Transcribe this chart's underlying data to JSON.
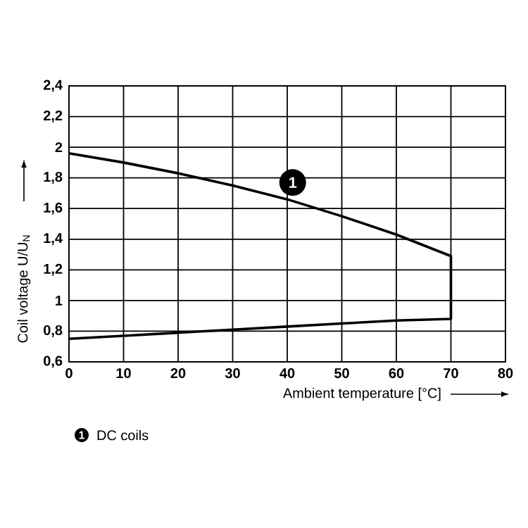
{
  "chart_data": {
    "type": "line",
    "xlabel": "Ambient temperature [°C]",
    "ylabel": "Coil voltage U/U$_{N}$",
    "series": [
      {
        "color": "#000000",
        "x": [
          0,
          10,
          20,
          30,
          40,
          50,
          60,
          70,
          70,
          60,
          50,
          40,
          30,
          20,
          10,
          0
        ],
        "values": [
          1.96,
          1.9,
          1.83,
          1.75,
          1.66,
          1.55,
          1.43,
          1.29,
          0.88,
          0.87,
          0.85,
          0.83,
          0.81,
          0.79,
          0.77,
          0.75
        ]
      }
    ],
    "xlim": [
      0,
      80
    ],
    "ylim": [
      0.6,
      2.4
    ],
    "xticks": [
      0,
      10,
      20,
      30,
      40,
      50,
      60,
      70,
      80
    ],
    "yticks": [
      {
        "value": 0.6,
        "label": "0,6"
      },
      {
        "value": 0.8,
        "label": "0,8"
      },
      {
        "value": 1,
        "label": "1"
      },
      {
        "value": 1.2,
        "label": "1,2"
      },
      {
        "value": 1.4,
        "label": "1,4"
      },
      {
        "value": 1.6,
        "label": "1,6"
      },
      {
        "value": 1.8,
        "label": "1,8"
      },
      {
        "value": 2,
        "label": "2"
      },
      {
        "value": 2.2,
        "label": "2,2"
      },
      {
        "value": 2.4,
        "label": "2,4"
      }
    ],
    "grid": true,
    "marker": "none",
    "line_style": "solid",
    "annotations": [
      {
        "text": "1",
        "x": 41,
        "y": 1.77
      },
      "1",
      "DC coils"
    ]
  }
}
